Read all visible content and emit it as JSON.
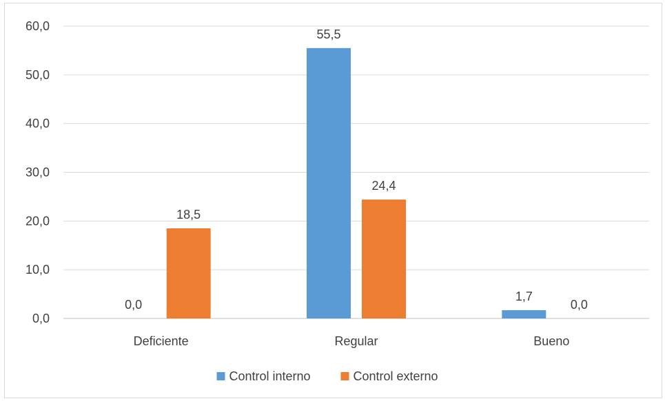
{
  "chart_data": {
    "type": "bar",
    "title": "",
    "xlabel": "",
    "ylabel": "",
    "categories": [
      "Deficiente",
      "Regular",
      "Bueno"
    ],
    "series": [
      {
        "name": "Control interno",
        "values": [
          0.0,
          55.5,
          1.7
        ],
        "color": "#5b9bd5"
      },
      {
        "name": "Control externo",
        "values": [
          18.5,
          24.4,
          0.0
        ],
        "color": "#ed7d31"
      }
    ],
    "data_labels": [
      [
        "0,0",
        "55,5",
        "1,7"
      ],
      [
        "18,5",
        "24,4",
        "0,0"
      ]
    ],
    "ylim": [
      0,
      60
    ],
    "yticks": [
      0,
      10,
      20,
      30,
      40,
      50,
      60
    ],
    "ytick_labels": [
      "0,0",
      "10,0",
      "20,0",
      "30,0",
      "40,0",
      "50,0",
      "60,0"
    ],
    "grid": true,
    "legend_position": "bottom"
  }
}
